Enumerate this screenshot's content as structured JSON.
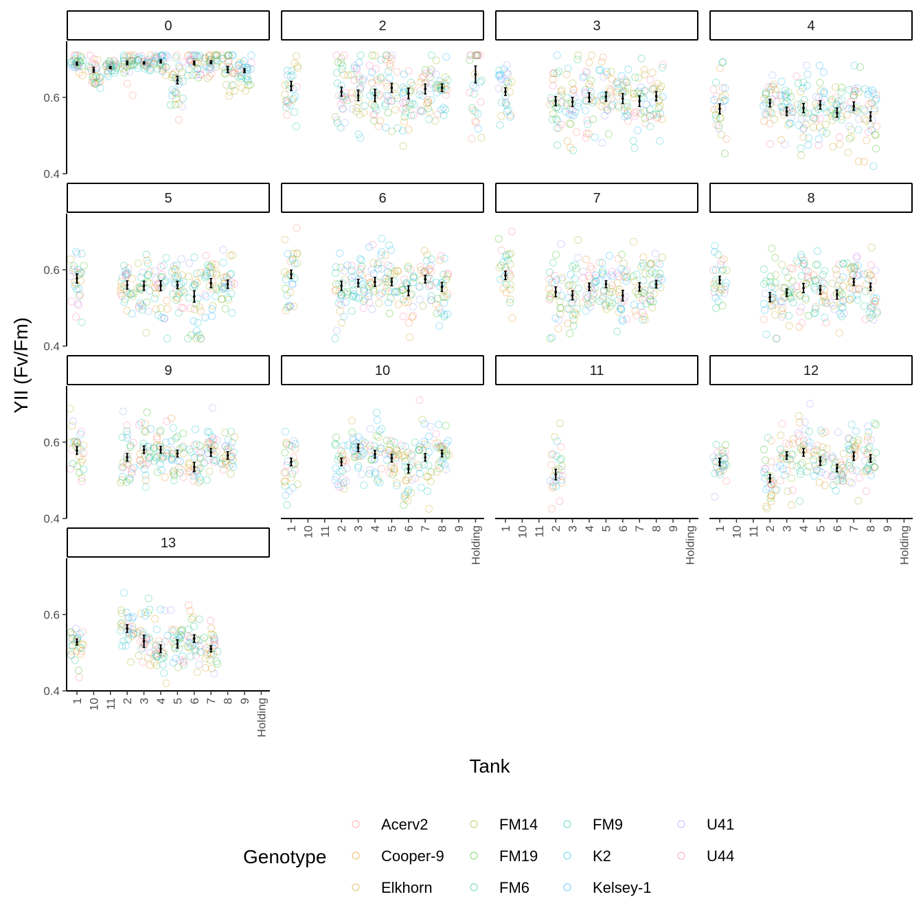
{
  "chart_data": {
    "type": "scatter",
    "facet_variable": "Day",
    "xlabel": "Tank",
    "ylabel": "YII (Fv/Fm)",
    "ylim": [
      0.4,
      0.72
    ],
    "y_ticks": [
      0.4,
      0.6
    ],
    "y_tick_labels": [
      "0.4",
      "0.6"
    ],
    "x_categories": [
      "1",
      "10",
      "11",
      "2",
      "3",
      "4",
      "5",
      "6",
      "7",
      "8",
      "9",
      "Holding"
    ],
    "grid": false,
    "legend": {
      "title": "Genotype",
      "placement": "bottom",
      "entries": [
        {
          "name": "Acerv2",
          "color": "#F8766D"
        },
        {
          "name": "Cooper-9",
          "color": "#E18A00"
        },
        {
          "name": "Elkhorn",
          "color": "#BE9C00"
        },
        {
          "name": "FM14",
          "color": "#8CAB00"
        },
        {
          "name": "FM19",
          "color": "#24B700"
        },
        {
          "name": "FM6",
          "color": "#00BE70"
        },
        {
          "name": "FM9",
          "color": "#00C1AB"
        },
        {
          "name": "K2",
          "color": "#00BBDA"
        },
        {
          "name": "Kelsey-1",
          "color": "#00ACFC"
        },
        {
          "name": "U41",
          "color": "#8B93FF"
        },
        {
          "name": "U44",
          "color": "#FF65AC"
        }
      ]
    },
    "panels": [
      {
        "day": "0",
        "summary": [
          {
            "x": "1",
            "mean": 0.688,
            "se": 0.004
          },
          {
            "x": "10",
            "mean": 0.672,
            "se": 0.006
          },
          {
            "x": "11",
            "mean": 0.678,
            "se": 0.003
          },
          {
            "x": "2",
            "mean": 0.69,
            "se": 0.005
          },
          {
            "x": "3",
            "mean": 0.69,
            "se": 0.003
          },
          {
            "x": "4",
            "mean": 0.694,
            "se": 0.004
          },
          {
            "x": "5",
            "mean": 0.645,
            "se": 0.01
          },
          {
            "x": "6",
            "mean": 0.69,
            "se": 0.005
          },
          {
            "x": "7",
            "mean": 0.692,
            "se": 0.004
          },
          {
            "x": "8",
            "mean": 0.673,
            "se": 0.008
          },
          {
            "x": "9",
            "mean": 0.67,
            "se": 0.005
          }
        ]
      },
      {
        "day": "2",
        "summary": [
          {
            "x": "1",
            "mean": 0.63,
            "se": 0.012
          },
          {
            "x": "2",
            "mean": 0.615,
            "se": 0.012
          },
          {
            "x": "3",
            "mean": 0.605,
            "se": 0.014
          },
          {
            "x": "4",
            "mean": 0.605,
            "se": 0.016
          },
          {
            "x": "5",
            "mean": 0.625,
            "se": 0.012
          },
          {
            "x": "6",
            "mean": 0.61,
            "se": 0.014
          },
          {
            "x": "7",
            "mean": 0.622,
            "se": 0.013
          },
          {
            "x": "8",
            "mean": 0.625,
            "se": 0.01
          },
          {
            "x": "Holding",
            "mean": 0.66,
            "se": 0.022
          }
        ]
      },
      {
        "day": "3",
        "summary": [
          {
            "x": "1",
            "mean": 0.615,
            "se": 0.01
          },
          {
            "x": "2",
            "mean": 0.59,
            "se": 0.012
          },
          {
            "x": "3",
            "mean": 0.588,
            "se": 0.012
          },
          {
            "x": "4",
            "mean": 0.6,
            "se": 0.012
          },
          {
            "x": "5",
            "mean": 0.602,
            "se": 0.012
          },
          {
            "x": "6",
            "mean": 0.597,
            "se": 0.013
          },
          {
            "x": "7",
            "mean": 0.59,
            "se": 0.014
          },
          {
            "x": "8",
            "mean": 0.603,
            "se": 0.012
          }
        ]
      },
      {
        "day": "4",
        "summary": [
          {
            "x": "1",
            "mean": 0.57,
            "se": 0.013
          },
          {
            "x": "2",
            "mean": 0.585,
            "se": 0.01
          },
          {
            "x": "3",
            "mean": 0.563,
            "se": 0.011
          },
          {
            "x": "4",
            "mean": 0.572,
            "se": 0.012
          },
          {
            "x": "5",
            "mean": 0.58,
            "se": 0.011
          },
          {
            "x": "6",
            "mean": 0.56,
            "se": 0.012
          },
          {
            "x": "7",
            "mean": 0.577,
            "se": 0.011
          },
          {
            "x": "8",
            "mean": 0.55,
            "se": 0.012
          }
        ]
      },
      {
        "day": "5",
        "summary": [
          {
            "x": "1",
            "mean": 0.577,
            "se": 0.012
          },
          {
            "x": "2",
            "mean": 0.56,
            "se": 0.011
          },
          {
            "x": "3",
            "mean": 0.558,
            "se": 0.012
          },
          {
            "x": "4",
            "mean": 0.558,
            "se": 0.013
          },
          {
            "x": "5",
            "mean": 0.56,
            "se": 0.01
          },
          {
            "x": "6",
            "mean": 0.53,
            "se": 0.015
          },
          {
            "x": "7",
            "mean": 0.565,
            "se": 0.012
          },
          {
            "x": "8",
            "mean": 0.562,
            "se": 0.011
          }
        ]
      },
      {
        "day": "6",
        "summary": [
          {
            "x": "1",
            "mean": 0.588,
            "se": 0.011
          },
          {
            "x": "2",
            "mean": 0.558,
            "se": 0.012
          },
          {
            "x": "3",
            "mean": 0.565,
            "se": 0.01
          },
          {
            "x": "4",
            "mean": 0.568,
            "se": 0.012
          },
          {
            "x": "5",
            "mean": 0.568,
            "se": 0.01
          },
          {
            "x": "6",
            "mean": 0.545,
            "se": 0.013
          },
          {
            "x": "7",
            "mean": 0.575,
            "se": 0.01
          },
          {
            "x": "8",
            "mean": 0.555,
            "se": 0.012
          }
        ]
      },
      {
        "day": "7",
        "summary": [
          {
            "x": "1",
            "mean": 0.585,
            "se": 0.011
          },
          {
            "x": "2",
            "mean": 0.542,
            "se": 0.013
          },
          {
            "x": "3",
            "mean": 0.533,
            "se": 0.012
          },
          {
            "x": "4",
            "mean": 0.555,
            "se": 0.01
          },
          {
            "x": "5",
            "mean": 0.562,
            "se": 0.009
          },
          {
            "x": "6",
            "mean": 0.532,
            "se": 0.014
          },
          {
            "x": "7",
            "mean": 0.555,
            "se": 0.011
          },
          {
            "x": "8",
            "mean": 0.562,
            "se": 0.01
          }
        ]
      },
      {
        "day": "8",
        "summary": [
          {
            "x": "1",
            "mean": 0.573,
            "se": 0.01
          },
          {
            "x": "2",
            "mean": 0.528,
            "se": 0.012
          },
          {
            "x": "3",
            "mean": 0.54,
            "se": 0.01
          },
          {
            "x": "4",
            "mean": 0.552,
            "se": 0.012
          },
          {
            "x": "5",
            "mean": 0.547,
            "se": 0.011
          },
          {
            "x": "6",
            "mean": 0.535,
            "se": 0.012
          },
          {
            "x": "7",
            "mean": 0.568,
            "se": 0.009
          },
          {
            "x": "8",
            "mean": 0.555,
            "se": 0.01
          }
        ]
      },
      {
        "day": "9",
        "summary": [
          {
            "x": "1",
            "mean": 0.578,
            "se": 0.01
          },
          {
            "x": "2",
            "mean": 0.56,
            "se": 0.01
          },
          {
            "x": "3",
            "mean": 0.58,
            "se": 0.01
          },
          {
            "x": "4",
            "mean": 0.58,
            "se": 0.009
          },
          {
            "x": "5",
            "mean": 0.57,
            "se": 0.009
          },
          {
            "x": "6",
            "mean": 0.535,
            "se": 0.012
          },
          {
            "x": "7",
            "mean": 0.573,
            "se": 0.01
          },
          {
            "x": "8",
            "mean": 0.565,
            "se": 0.01
          }
        ]
      },
      {
        "day": "10",
        "summary": [
          {
            "x": "1",
            "mean": 0.548,
            "se": 0.01
          },
          {
            "x": "2",
            "mean": 0.548,
            "se": 0.01
          },
          {
            "x": "3",
            "mean": 0.585,
            "se": 0.01
          },
          {
            "x": "4",
            "mean": 0.568,
            "se": 0.01
          },
          {
            "x": "5",
            "mean": 0.558,
            "se": 0.01
          },
          {
            "x": "6",
            "mean": 0.53,
            "se": 0.011
          },
          {
            "x": "7",
            "mean": 0.56,
            "se": 0.01
          },
          {
            "x": "8",
            "mean": 0.57,
            "se": 0.009
          }
        ]
      },
      {
        "day": "11",
        "summary": [
          {
            "x": "2",
            "mean": 0.515,
            "se": 0.014
          }
        ]
      },
      {
        "day": "12",
        "summary": [
          {
            "x": "1",
            "mean": 0.548,
            "se": 0.01
          },
          {
            "x": "2",
            "mean": 0.505,
            "se": 0.01
          },
          {
            "x": "3",
            "mean": 0.565,
            "se": 0.01
          },
          {
            "x": "4",
            "mean": 0.573,
            "se": 0.01
          },
          {
            "x": "5",
            "mean": 0.55,
            "se": 0.011
          },
          {
            "x": "6",
            "mean": 0.532,
            "se": 0.01
          },
          {
            "x": "7",
            "mean": 0.563,
            "se": 0.011
          },
          {
            "x": "8",
            "mean": 0.557,
            "se": 0.01
          }
        ]
      },
      {
        "day": "13",
        "summary": [
          {
            "x": "1",
            "mean": 0.528,
            "se": 0.008
          },
          {
            "x": "2",
            "mean": 0.563,
            "se": 0.01
          },
          {
            "x": "3",
            "mean": 0.53,
            "se": 0.016
          },
          {
            "x": "4",
            "mean": 0.51,
            "se": 0.01
          },
          {
            "x": "5",
            "mean": 0.523,
            "se": 0.011
          },
          {
            "x": "6",
            "mean": 0.537,
            "se": 0.01
          },
          {
            "x": "7",
            "mean": 0.51,
            "se": 0.008
          }
        ]
      }
    ]
  }
}
